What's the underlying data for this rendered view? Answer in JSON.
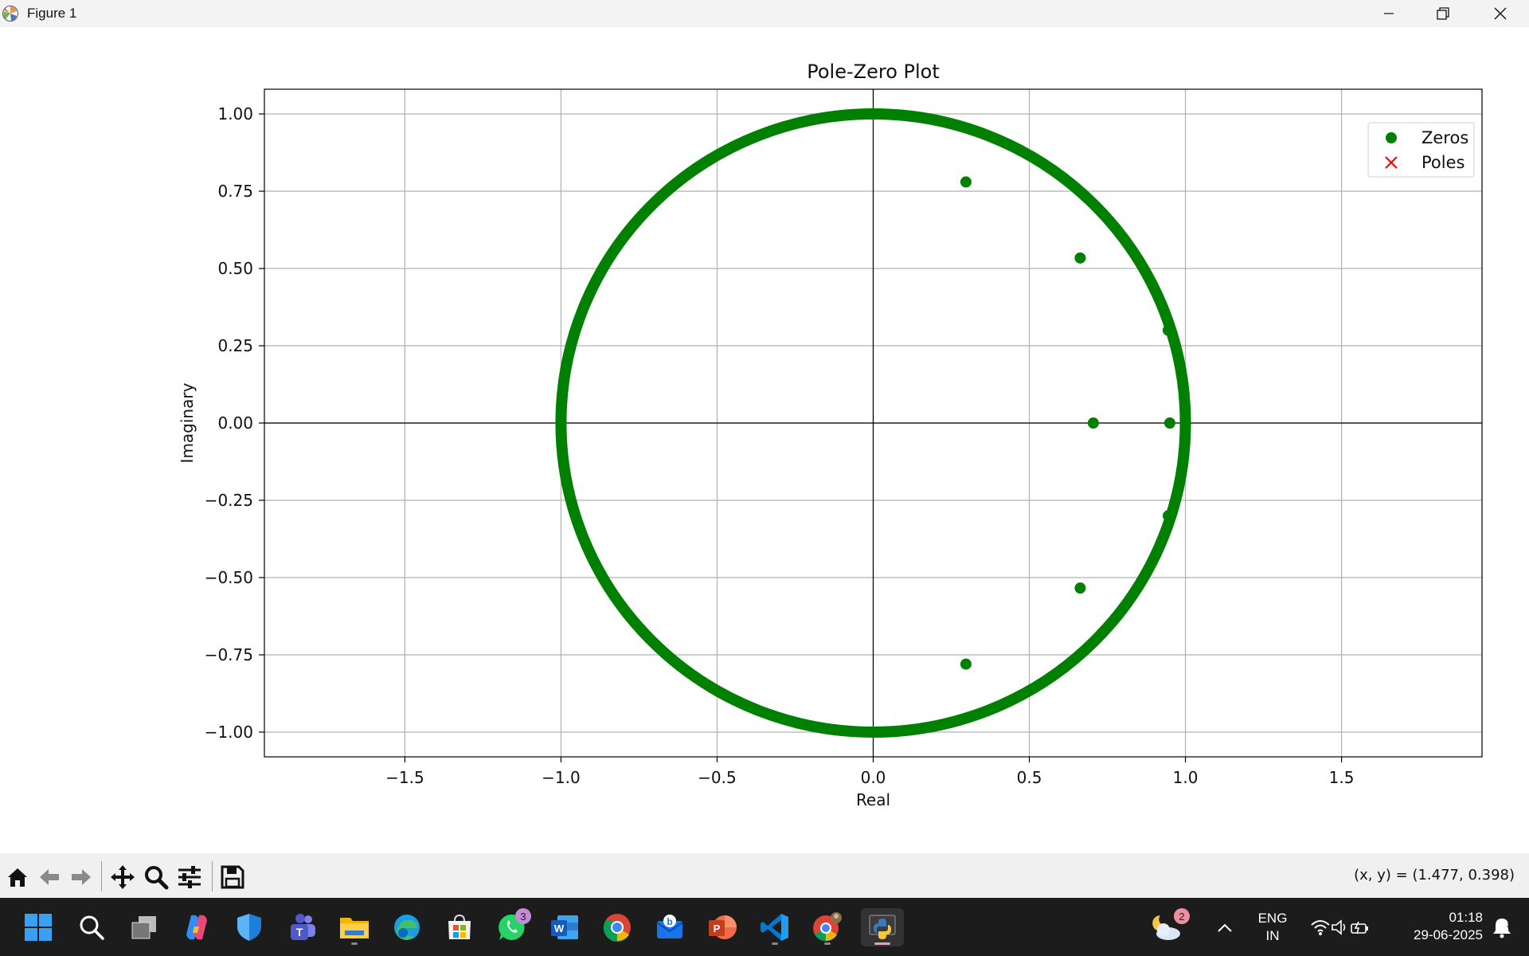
{
  "window": {
    "title": "Figure 1",
    "icon": "matplotlib-icon",
    "controls": [
      "minimize-icon",
      "restore-icon",
      "close-icon"
    ]
  },
  "chart_data": {
    "type": "scatter",
    "title": "Pole-Zero Plot",
    "xlabel": "Real",
    "ylabel": "Imaginary",
    "xlim": [
      -1.95,
      1.95
    ],
    "ylim": [
      -1.08,
      1.08
    ],
    "xticks": [
      -1.5,
      -1.0,
      -0.5,
      0.0,
      0.5,
      1.0,
      1.5
    ],
    "xtick_labels": [
      "−1.5",
      "−1.0",
      "−0.5",
      "0.0",
      "0.5",
      "1.0",
      "1.5"
    ],
    "yticks": [
      1.0,
      0.75,
      0.5,
      0.25,
      0.0,
      -0.25,
      -0.5,
      -0.75,
      -1.0
    ],
    "ytick_labels": [
      "1.00",
      "0.75",
      "0.50",
      "0.25",
      "0.00",
      "−0.25",
      "−0.50",
      "−0.75",
      "−1.00"
    ],
    "grid": true,
    "axhline": 0,
    "axvline": 0,
    "legend_position": "top-right",
    "unit_circle": {
      "radius": 1.0,
      "color": "#008000"
    },
    "series": [
      {
        "name": "Zeros",
        "marker": "o",
        "color": "#008000",
        "points": [
          [
            0.297,
            0.78
          ],
          [
            0.297,
            -0.78
          ],
          [
            0.663,
            0.534
          ],
          [
            0.663,
            -0.534
          ],
          [
            0.705,
            0.0
          ],
          [
            0.95,
            0.0
          ],
          [
            0.945,
            0.3
          ],
          [
            0.945,
            -0.3
          ]
        ]
      },
      {
        "name": "Poles",
        "marker": "x",
        "color": "#ff0000",
        "points": []
      }
    ]
  },
  "toolbar": {
    "buttons": [
      "home-icon",
      "back-icon",
      "forward-icon",
      "pan-icon",
      "zoom-icon",
      "configure-subplots-icon",
      "save-icon"
    ],
    "coords": "(x, y) = (1.477, 0.398)"
  },
  "taskbar": {
    "apps": [
      "start-icon",
      "search-icon",
      "task-view-icon",
      "copilot-icon",
      "defender-icon",
      "teams-icon",
      "file-explorer-icon",
      "edge-icon",
      "store-icon",
      "whatsapp-icon",
      "word-icon",
      "chrome-icon",
      "bing-mail-icon",
      "powerpoint-icon",
      "vscode-icon",
      "chrome-profile-icon",
      "python-icon"
    ],
    "whatsapp_badge": "3",
    "weather_badge": "2",
    "lang_top": "ENG",
    "lang_bottom": "IN",
    "time": "01:18",
    "date": "29-06-2025"
  }
}
